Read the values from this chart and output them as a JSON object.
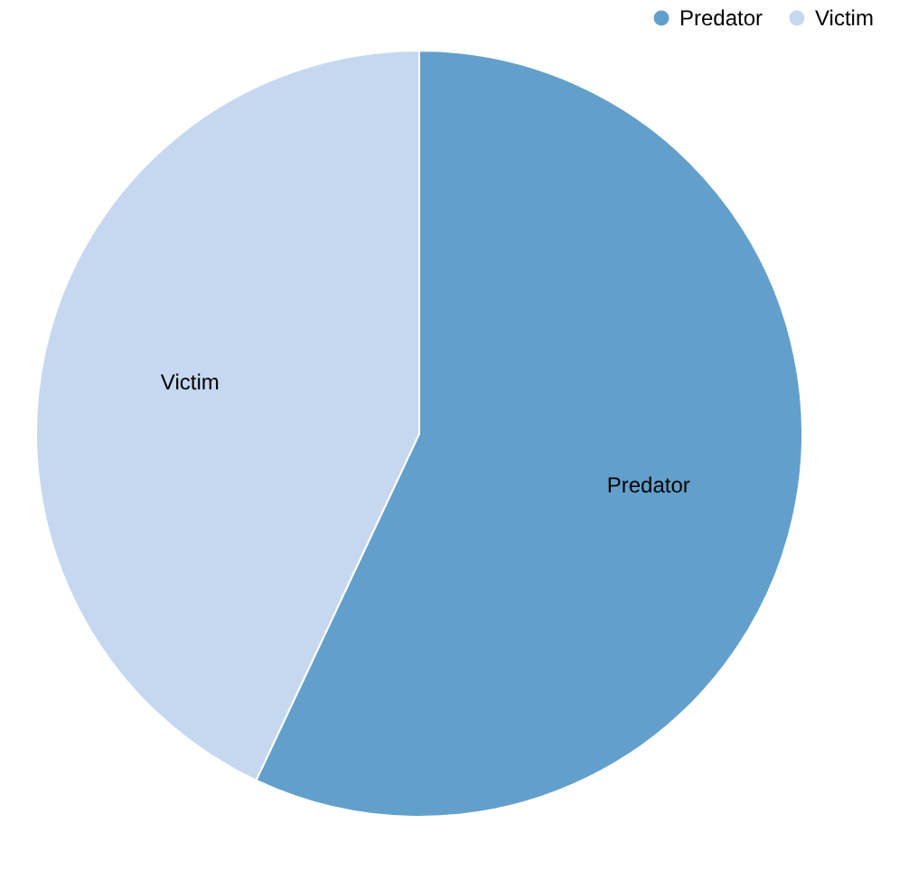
{
  "chart_data": {
    "type": "pie",
    "categories": [
      "Predator",
      "Victim"
    ],
    "values": [
      57,
      43
    ],
    "colors": [
      "#62a0cb",
      "#c6d8ef"
    ],
    "legend": "top right"
  }
}
